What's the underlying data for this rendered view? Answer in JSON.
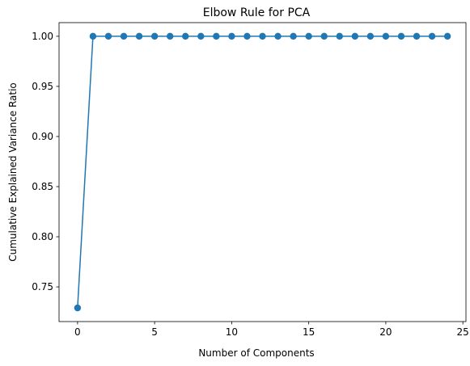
{
  "chart_data": {
    "type": "line",
    "title": "Elbow Rule for PCA",
    "xlabel": "Number of Components",
    "ylabel": "Cumulative Explained Variance Ratio",
    "x": [
      0,
      1,
      2,
      3,
      4,
      5,
      6,
      7,
      8,
      9,
      10,
      11,
      12,
      13,
      14,
      15,
      16,
      17,
      18,
      19,
      20,
      21,
      22,
      23,
      24
    ],
    "series": [
      {
        "values": [
          0.729,
          1.0,
          1.0,
          1.0,
          1.0,
          1.0,
          1.0,
          1.0,
          1.0,
          1.0,
          1.0,
          1.0,
          1.0,
          1.0,
          1.0,
          1.0,
          1.0,
          1.0,
          1.0,
          1.0,
          1.0,
          1.0,
          1.0,
          1.0,
          1.0
        ],
        "color": "#1f77b4",
        "marker": "circle"
      }
    ],
    "xlim": [
      -1.2,
      25.2
    ],
    "ylim": [
      0.7154,
      1.0136
    ],
    "xticks": [
      0,
      5,
      10,
      15,
      20,
      25
    ],
    "xtick_labels": [
      "0",
      "5",
      "10",
      "15",
      "20",
      "25"
    ],
    "yticks": [
      0.75,
      0.8,
      0.85,
      0.9,
      0.95,
      1.0
    ],
    "ytick_labels": [
      "0.75",
      "0.80",
      "0.85",
      "0.90",
      "0.95",
      "1.00"
    ],
    "grid": false,
    "legend": "none"
  }
}
